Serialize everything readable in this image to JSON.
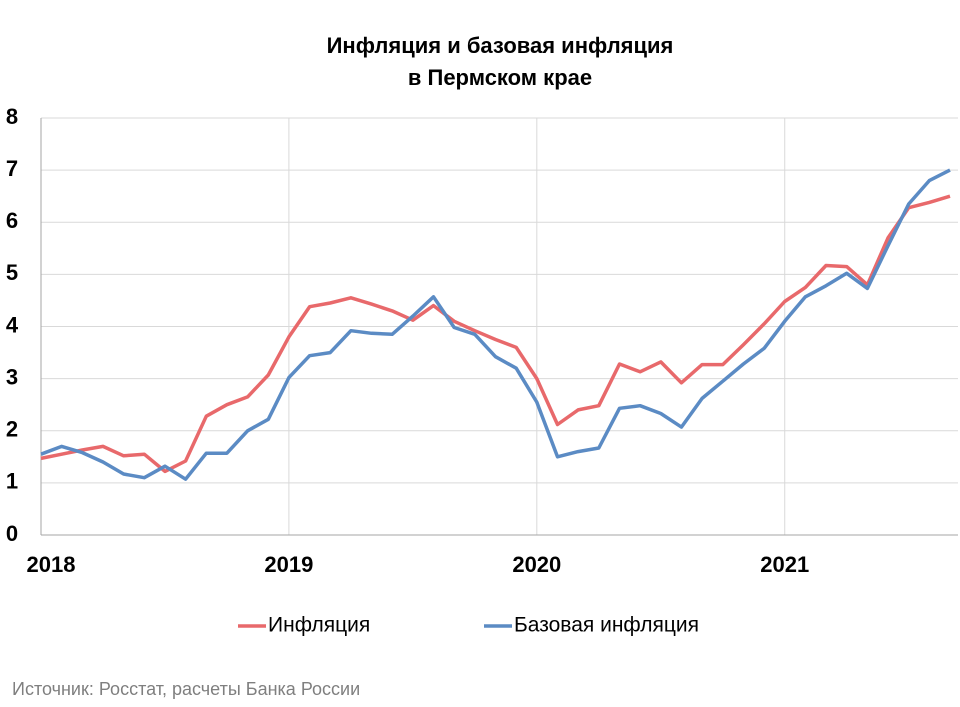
{
  "chart_data": {
    "type": "line",
    "title": [
      "Инфляция и базовая инфляция",
      "в Пермском крае"
    ],
    "source": "Источник: Росстат, расчеты Банка России",
    "categories": [
      "2018",
      null,
      null,
      null,
      null,
      null,
      null,
      null,
      null,
      null,
      null,
      null,
      "2019",
      null,
      null,
      null,
      null,
      null,
      null,
      null,
      null,
      null,
      null,
      null,
      "2020",
      null,
      null,
      null,
      null,
      null,
      null,
      null,
      null,
      null,
      null,
      null,
      "2021",
      null,
      null,
      null,
      null,
      null,
      null,
      null,
      null
    ],
    "series": [
      {
        "name": "Инфляция",
        "color": "#e8696b",
        "values": [
          1.47,
          1.55,
          1.63,
          1.7,
          1.52,
          1.55,
          1.22,
          1.42,
          2.28,
          2.5,
          2.65,
          3.07,
          3.8,
          4.38,
          4.45,
          4.55,
          4.43,
          4.3,
          4.12,
          4.4,
          4.1,
          3.92,
          3.75,
          3.6,
          3.0,
          2.12,
          2.4,
          2.48,
          3.28,
          3.13,
          3.32,
          2.92,
          3.27,
          3.27,
          3.65,
          4.05,
          4.48,
          4.75,
          5.17,
          5.15,
          4.8,
          5.7,
          6.28,
          6.38,
          6.5
        ]
      },
      {
        "name": "Базовая инфляция",
        "color": "#5b8bc4",
        "values": [
          1.55,
          1.7,
          1.58,
          1.4,
          1.17,
          1.1,
          1.32,
          1.07,
          1.57,
          1.57,
          2.0,
          2.22,
          3.02,
          3.44,
          3.5,
          3.92,
          3.87,
          3.85,
          4.2,
          4.57,
          3.98,
          3.85,
          3.42,
          3.2,
          2.55,
          1.5,
          1.6,
          1.67,
          2.43,
          2.48,
          2.33,
          2.07,
          2.62,
          2.95,
          3.28,
          3.58,
          4.1,
          4.57,
          4.78,
          5.02,
          4.73,
          5.55,
          6.35,
          6.8,
          7.0
        ]
      }
    ],
    "ylim": [
      0,
      8
    ],
    "yticks": [
      0,
      1,
      2,
      3,
      4,
      5,
      6,
      7,
      8
    ],
    "grid": true,
    "legend": "bottom"
  }
}
